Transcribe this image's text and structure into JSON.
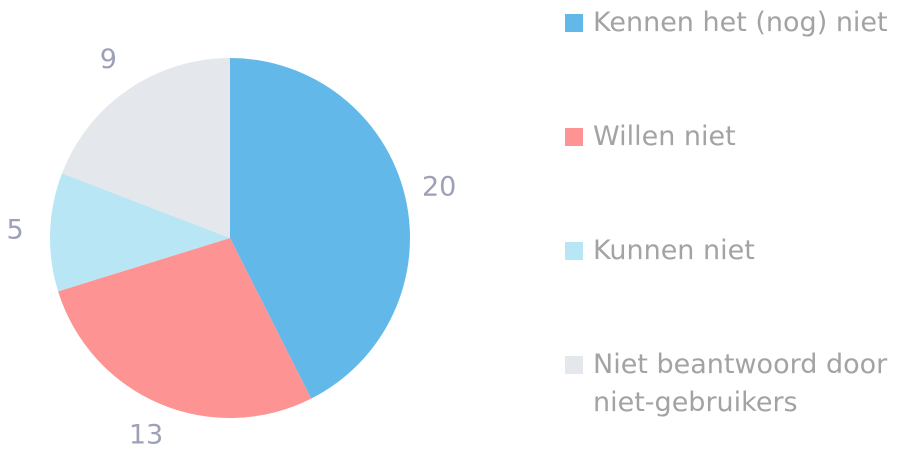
{
  "chart_data": {
    "type": "pie",
    "categories": [
      "Kennen het (nog) niet",
      "Willen niet",
      "Kunnen niet",
      "Niet beantwoord door niet-gebruikers"
    ],
    "values": [
      20,
      13,
      5,
      9
    ],
    "colors": [
      "#62b9e9",
      "#fd9393",
      "#b9e6f5",
      "#e4e7eb"
    ],
    "legend": "right"
  }
}
